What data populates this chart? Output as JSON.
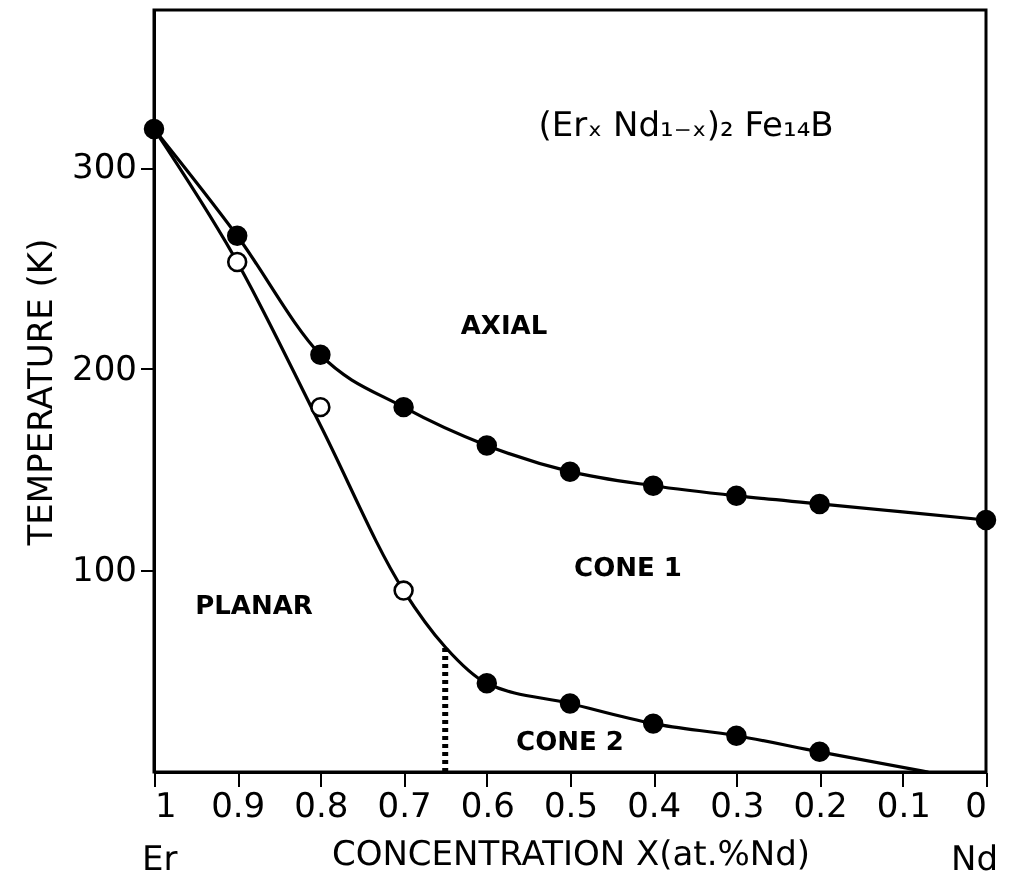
{
  "chart_data": {
    "type": "line",
    "xlabel": "CONCENTRATION X(at.%Nd)",
    "ylabel": "TEMPERATURE (K)",
    "annotations": [
      "(Erₓ Nd₁₋ₓ)₂ Fe₁₄B",
      "AXIAL",
      "CONE 1",
      "PLANAR",
      "CONE 2",
      "Er",
      "Nd"
    ],
    "xlim": [
      1,
      0
    ],
    "xticks": [
      1,
      0.9,
      0.8,
      0.7,
      0.6,
      0.5,
      0.4,
      0.3,
      0.2,
      0.1,
      0
    ],
    "ylim": [
      0,
      378
    ],
    "yticks": [
      100,
      200,
      300
    ],
    "grid": false,
    "series": [
      {
        "type": "line",
        "color": "#000000",
        "marker": "circle",
        "x": [
          1,
          0.9,
          0.8,
          0.7,
          0.6,
          0.5,
          0.4,
          0.3,
          0.2,
          0
        ],
        "values": [
          319,
          266,
          207,
          181,
          162,
          149,
          142,
          137,
          133,
          125
        ]
      },
      {
        "type": "line",
        "color": "#000000",
        "marker": "none",
        "x": [
          1,
          0.9,
          0.8,
          0.7,
          0.65,
          0.6,
          0.5,
          0.4,
          0.3,
          0.2,
          0.07
        ],
        "values": [
          319,
          253,
          172,
          90,
          62,
          44,
          34,
          24,
          18,
          10,
          0
        ]
      },
      {
        "type": "scatter",
        "color": "#000000",
        "marker": "circle",
        "x": [
          0.6,
          0.5,
          0.4,
          0.3,
          0.2
        ],
        "values": [
          44,
          34,
          24,
          18,
          10
        ]
      },
      {
        "type": "scatter",
        "color": "#ffffff",
        "marker": "circle",
        "x": [
          0.9,
          0.8,
          0.7
        ],
        "values": [
          253,
          181,
          90
        ]
      },
      {
        "type": "line",
        "color": "#000000",
        "marker": "none",
        "line_style": "dotted",
        "x": [
          0.65,
          0.65
        ],
        "values": [
          0,
          62
        ]
      }
    ]
  }
}
